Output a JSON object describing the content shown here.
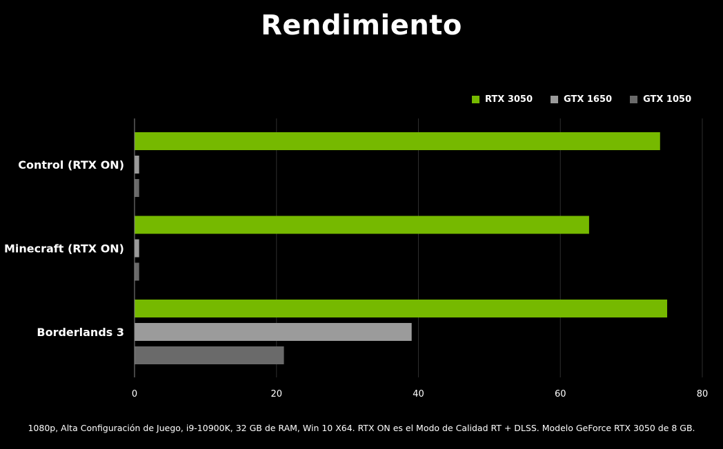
{
  "chart_data": {
    "type": "bar",
    "orientation": "horizontal",
    "title": "Rendimiento",
    "categories": [
      "Control (RTX ON)",
      "Minecraft (RTX ON)",
      "Borderlands 3"
    ],
    "series": [
      {
        "name": "RTX 3050",
        "color": "#76b900",
        "values": [
          74,
          64,
          75
        ]
      },
      {
        "name": "GTX 1650",
        "color": "#9b9b9b",
        "values": [
          0.6,
          0.6,
          39
        ]
      },
      {
        "name": "GTX 1050",
        "color": "#6a6a6a",
        "values": [
          0.6,
          0.6,
          21
        ]
      }
    ],
    "xlim": [
      0,
      80
    ],
    "xticks": [
      "0",
      "20",
      "40",
      "60",
      "80"
    ],
    "grid": true,
    "legend_position": "top-right"
  },
  "footnote": "1080p, Alta Configuración de Juego, i9-10900K, 32 GB de RAM, Win 10 X64. RTX ON es el Modo de Calidad RT + DLSS. Modelo GeForce RTX 3050 de 8 GB."
}
